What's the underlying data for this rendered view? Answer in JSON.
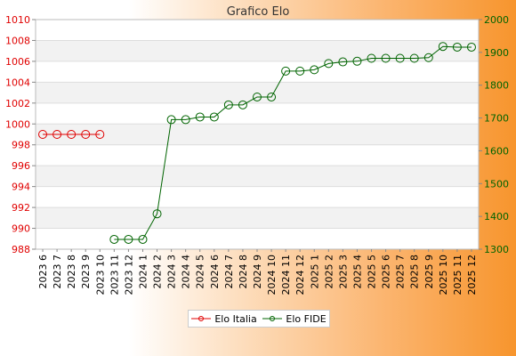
{
  "chart_data": {
    "type": "line",
    "title": "Grafico Elo",
    "categories": [
      "2023 6",
      "2023 7",
      "2023 8",
      "2023 9",
      "2023 10",
      "2023 11",
      "2023 12",
      "2024 1",
      "2024 2",
      "2024 3",
      "2024 4",
      "2024 5",
      "2024 6",
      "2024 7",
      "2024 8",
      "2024 9",
      "2024 10",
      "2024 11",
      "2024 12",
      "2025 1",
      "2025 2",
      "2025 3",
      "2025 4",
      "2025 5",
      "2025 6",
      "2025 7",
      "2025 8",
      "2025 9",
      "2025 10",
      "2025 11",
      "2025 12"
    ],
    "y_left": {
      "min": 988,
      "max": 1010,
      "step": 2,
      "color": "#e00000"
    },
    "y_right": {
      "min": 1300,
      "max": 2000,
      "step": 100,
      "color": "#006400"
    },
    "grid": true,
    "legend_position": "bottom-center",
    "series": [
      {
        "name": "Elo Italia",
        "axis": "left",
        "color": "#e00000",
        "values": [
          999,
          999,
          999,
          999,
          999,
          null,
          null,
          null,
          null,
          null,
          null,
          null,
          null,
          null,
          null,
          null,
          null,
          null,
          null,
          null,
          null,
          null,
          null,
          null,
          null,
          null,
          null,
          null,
          null,
          null,
          null
        ]
      },
      {
        "name": "Elo FIDE",
        "axis": "right",
        "color": "#006400",
        "values": [
          null,
          null,
          null,
          null,
          null,
          1330,
          1330,
          1330,
          1408,
          1695,
          1695,
          1703,
          1703,
          1740,
          1740,
          1764,
          1764,
          1843,
          1843,
          1847,
          1866,
          1871,
          1873,
          1882,
          1882,
          1882,
          1882,
          1884,
          1918,
          1916,
          1916
        ]
      }
    ]
  }
}
